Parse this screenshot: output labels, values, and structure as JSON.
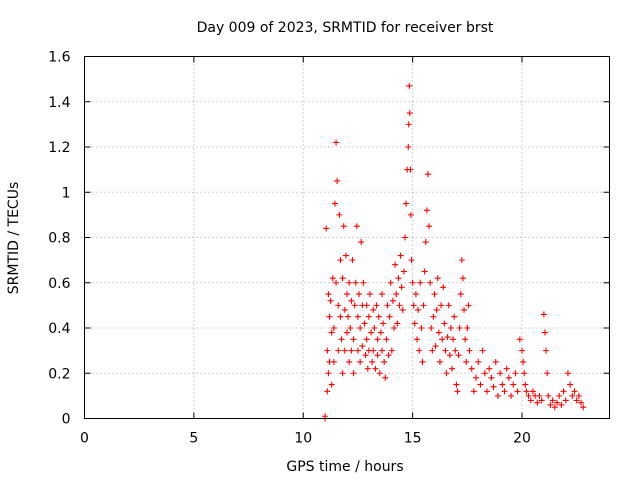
{
  "chart_data": {
    "type": "scatter",
    "title": "Day 009 of 2023, SRMTID for receiver brst",
    "xlabel": "GPS time / hours",
    "ylabel": "SRMTID / TECUs",
    "xlim": [
      0,
      24
    ],
    "ylim": [
      0,
      1.6
    ],
    "x_ticks": [
      0,
      5,
      10,
      15,
      20
    ],
    "x_tick_labels": [
      "0",
      "5",
      "10",
      "15",
      "20"
    ],
    "y_ticks": [
      0,
      0.2,
      0.4,
      0.6,
      0.8,
      1.0,
      1.2,
      1.4,
      1.6
    ],
    "y_tick_labels": [
      "0",
      "0.2",
      "0.4",
      "0.6",
      "0.8",
      "1",
      "1.2",
      "1.4",
      "1.6"
    ],
    "grid": true,
    "marker": "+",
    "color": "#ff0000",
    "series": [
      {
        "name": "SRMTID",
        "x": [
          11.0,
          11.0,
          11.05,
          11.1,
          11.1,
          11.15,
          11.15,
          11.2,
          11.2,
          11.25,
          11.3,
          11.3,
          11.35,
          11.4,
          11.4,
          11.45,
          11.5,
          11.5,
          11.55,
          11.6,
          11.6,
          11.65,
          11.7,
          11.7,
          11.75,
          11.8,
          11.8,
          11.85,
          11.9,
          11.9,
          11.95,
          12.0,
          12.0,
          12.05,
          12.1,
          12.1,
          12.15,
          12.2,
          12.2,
          12.25,
          12.3,
          12.3,
          12.35,
          12.4,
          12.45,
          12.5,
          12.5,
          12.55,
          12.6,
          12.6,
          12.65,
          12.7,
          12.7,
          12.75,
          12.8,
          12.85,
          12.9,
          12.9,
          12.95,
          13.0,
          13.0,
          13.05,
          13.1,
          13.15,
          13.2,
          13.2,
          13.25,
          13.3,
          13.35,
          13.4,
          13.4,
          13.45,
          13.5,
          13.55,
          13.6,
          13.6,
          13.65,
          13.7,
          13.75,
          13.8,
          13.85,
          13.9,
          13.95,
          14.0,
          14.05,
          14.1,
          14.15,
          14.2,
          14.25,
          14.3,
          14.35,
          14.4,
          14.45,
          14.5,
          14.55,
          14.6,
          14.65,
          14.7,
          14.75,
          14.8,
          14.82,
          14.85,
          14.87,
          14.9,
          14.92,
          14.95,
          15.0,
          15.05,
          15.1,
          15.15,
          15.2,
          15.25,
          15.3,
          15.35,
          15.4,
          15.45,
          15.5,
          15.55,
          15.6,
          15.65,
          15.7,
          15.75,
          15.8,
          15.85,
          15.9,
          15.95,
          16.0,
          16.05,
          16.1,
          16.15,
          16.2,
          16.25,
          16.3,
          16.35,
          16.4,
          16.45,
          16.5,
          16.55,
          16.6,
          16.65,
          16.7,
          16.75,
          16.8,
          16.85,
          16.9,
          16.95,
          17.0,
          17.05,
          17.1,
          17.15,
          17.2,
          17.25,
          17.3,
          17.35,
          17.4,
          17.45,
          17.5,
          17.55,
          17.6,
          17.7,
          17.8,
          17.9,
          18.0,
          18.1,
          18.2,
          18.3,
          18.4,
          18.5,
          18.6,
          18.7,
          18.8,
          18.9,
          19.0,
          19.1,
          19.2,
          19.3,
          19.4,
          19.5,
          19.6,
          19.7,
          19.8,
          19.9,
          20.0,
          20.05,
          20.1,
          20.15,
          20.2,
          20.3,
          20.4,
          20.5,
          20.6,
          20.7,
          20.8,
          20.9,
          21.0,
          21.05,
          21.1,
          21.15,
          21.2,
          21.3,
          21.4,
          21.5,
          21.6,
          21.7,
          21.8,
          21.9,
          22.0,
          22.1,
          22.2,
          22.3,
          22.4,
          22.5,
          22.6,
          22.7,
          22.8
        ],
        "y": [
          0.01,
          0.0,
          0.84,
          0.3,
          0.12,
          0.55,
          0.2,
          0.45,
          0.25,
          0.52,
          0.38,
          0.15,
          0.62,
          0.4,
          0.25,
          0.95,
          1.22,
          0.6,
          1.05,
          0.5,
          0.3,
          0.9,
          0.45,
          0.7,
          0.35,
          0.62,
          0.2,
          0.85,
          0.48,
          0.3,
          0.72,
          0.55,
          0.38,
          0.45,
          0.25,
          0.6,
          0.4,
          0.3,
          0.52,
          0.7,
          0.35,
          0.2,
          0.5,
          0.6,
          0.85,
          0.3,
          0.45,
          0.55,
          0.25,
          0.4,
          0.78,
          0.5,
          0.32,
          0.6,
          0.42,
          0.28,
          0.5,
          0.35,
          0.22,
          0.45,
          0.3,
          0.55,
          0.38,
          0.25,
          0.48,
          0.3,
          0.4,
          0.22,
          0.5,
          0.35,
          0.28,
          0.45,
          0.2,
          0.38,
          0.55,
          0.3,
          0.42,
          0.25,
          0.18,
          0.35,
          0.5,
          0.28,
          0.45,
          0.6,
          0.3,
          0.52,
          0.4,
          0.68,
          0.55,
          0.42,
          0.62,
          0.5,
          0.72,
          0.58,
          0.48,
          0.65,
          0.8,
          0.95,
          1.1,
          1.2,
          1.3,
          1.47,
          1.35,
          1.1,
          0.9,
          0.7,
          0.6,
          0.5,
          0.42,
          0.55,
          0.35,
          0.48,
          0.3,
          0.6,
          0.4,
          0.25,
          0.5,
          0.65,
          0.78,
          0.92,
          1.08,
          0.85,
          0.6,
          0.4,
          0.3,
          0.45,
          0.55,
          0.32,
          0.48,
          0.62,
          0.38,
          0.25,
          0.5,
          0.35,
          0.58,
          0.42,
          0.3,
          0.2,
          0.36,
          0.5,
          0.28,
          0.4,
          0.22,
          0.35,
          0.45,
          0.3,
          0.15,
          0.12,
          0.28,
          0.4,
          0.55,
          0.7,
          0.62,
          0.48,
          0.35,
          0.25,
          0.4,
          0.5,
          0.3,
          0.22,
          0.12,
          0.18,
          0.25,
          0.15,
          0.3,
          0.2,
          0.12,
          0.22,
          0.18,
          0.14,
          0.25,
          0.1,
          0.2,
          0.15,
          0.12,
          0.22,
          0.18,
          0.1,
          0.15,
          0.2,
          0.12,
          0.35,
          0.3,
          0.25,
          0.2,
          0.15,
          0.12,
          0.1,
          0.08,
          0.12,
          0.1,
          0.07,
          0.1,
          0.08,
          0.46,
          0.38,
          0.3,
          0.2,
          0.1,
          0.06,
          0.08,
          0.05,
          0.07,
          0.1,
          0.06,
          0.12,
          0.08,
          0.2,
          0.15,
          0.1,
          0.12,
          0.08,
          0.1,
          0.07,
          0.05
        ]
      }
    ]
  }
}
